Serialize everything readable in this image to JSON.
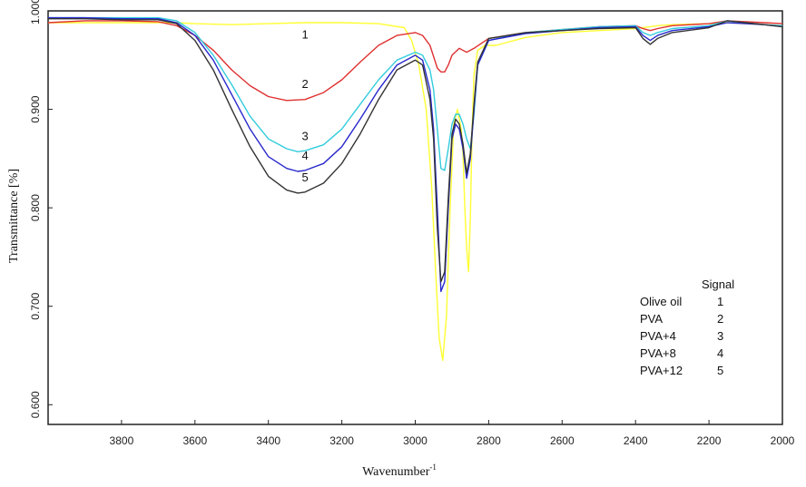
{
  "chart_data": {
    "type": "line",
    "title": "",
    "xlabel": "Wavenumber",
    "xlabel_sup": "-1",
    "ylabel": "Transmittance [%]",
    "xlim": [
      4000,
      2000
    ],
    "ylim": [
      0.58,
      1.0
    ],
    "x_ticks": [
      "3800",
      "3600",
      "3400",
      "3200",
      "3000",
      "2800",
      "2600",
      "2400",
      "2200",
      "2000"
    ],
    "y_ticks": [
      "1.000",
      "0.900",
      "0.800",
      "0.700",
      "0.600"
    ],
    "legend_header": "Signal",
    "legend_placement": "bottom-right",
    "grid": false,
    "series": [
      {
        "name": "Olive oil",
        "signal": "1",
        "color": "#ffff33",
        "x": [
          4000,
          3900,
          3800,
          3700,
          3650,
          3600,
          3500,
          3400,
          3300,
          3200,
          3100,
          3030,
          3010,
          2990,
          2970,
          2955,
          2945,
          2935,
          2925,
          2915,
          2905,
          2895,
          2885,
          2875,
          2870,
          2865,
          2860,
          2855,
          2850,
          2845,
          2840,
          2830,
          2810,
          2780,
          2700,
          2600,
          2500,
          2400,
          2380,
          2360,
          2340,
          2300,
          2200,
          2150,
          2100,
          2050,
          2000
        ],
        "y": [
          0.988,
          0.988,
          0.988,
          0.988,
          0.988,
          0.987,
          0.986,
          0.987,
          0.988,
          0.988,
          0.987,
          0.983,
          0.97,
          0.945,
          0.9,
          0.82,
          0.74,
          0.668,
          0.645,
          0.69,
          0.8,
          0.885,
          0.9,
          0.88,
          0.855,
          0.8,
          0.76,
          0.735,
          0.79,
          0.88,
          0.935,
          0.96,
          0.965,
          0.965,
          0.973,
          0.978,
          0.98,
          0.982,
          0.983,
          0.984,
          0.985,
          0.986,
          0.987,
          0.988,
          0.987,
          0.986,
          0.985
        ]
      },
      {
        "name": "PVA",
        "signal": "2",
        "color": "#e03030",
        "x": [
          4000,
          3900,
          3800,
          3700,
          3650,
          3600,
          3550,
          3500,
          3450,
          3400,
          3350,
          3300,
          3250,
          3200,
          3150,
          3100,
          3050,
          3000,
          2980,
          2960,
          2940,
          2930,
          2920,
          2910,
          2900,
          2880,
          2860,
          2840,
          2800,
          2700,
          2600,
          2500,
          2400,
          2380,
          2360,
          2340,
          2300,
          2200,
          2150,
          2100,
          2050,
          2000
        ],
        "y": [
          0.988,
          0.99,
          0.99,
          0.989,
          0.985,
          0.975,
          0.96,
          0.94,
          0.924,
          0.913,
          0.909,
          0.91,
          0.917,
          0.93,
          0.948,
          0.965,
          0.975,
          0.978,
          0.975,
          0.965,
          0.942,
          0.938,
          0.938,
          0.945,
          0.955,
          0.962,
          0.958,
          0.962,
          0.972,
          0.978,
          0.981,
          0.984,
          0.985,
          0.982,
          0.98,
          0.982,
          0.985,
          0.987,
          0.99,
          0.989,
          0.988,
          0.987
        ]
      },
      {
        "name": "PVA+4",
        "signal": "3",
        "color": "#33ccdd",
        "x": [
          4000,
          3900,
          3800,
          3700,
          3650,
          3600,
          3550,
          3500,
          3450,
          3400,
          3350,
          3320,
          3300,
          3250,
          3200,
          3150,
          3100,
          3050,
          3000,
          2980,
          2960,
          2950,
          2940,
          2930,
          2920,
          2910,
          2900,
          2890,
          2880,
          2870,
          2860,
          2850,
          2840,
          2830,
          2800,
          2700,
          2600,
          2500,
          2400,
          2380,
          2360,
          2340,
          2300,
          2200,
          2150,
          2100,
          2050,
          2000
        ],
        "y": [
          0.993,
          0.993,
          0.993,
          0.993,
          0.99,
          0.978,
          0.955,
          0.925,
          0.893,
          0.87,
          0.86,
          0.857,
          0.858,
          0.864,
          0.88,
          0.905,
          0.93,
          0.95,
          0.958,
          0.955,
          0.94,
          0.92,
          0.88,
          0.84,
          0.838,
          0.86,
          0.885,
          0.895,
          0.895,
          0.885,
          0.87,
          0.86,
          0.895,
          0.945,
          0.97,
          0.978,
          0.981,
          0.984,
          0.985,
          0.978,
          0.975,
          0.978,
          0.982,
          0.985,
          0.99,
          0.988,
          0.986,
          0.985
        ]
      },
      {
        "name": "PVA+8",
        "signal": "4",
        "color": "#2828cc",
        "x": [
          4000,
          3900,
          3800,
          3700,
          3650,
          3600,
          3550,
          3500,
          3450,
          3400,
          3350,
          3320,
          3300,
          3250,
          3200,
          3150,
          3100,
          3050,
          3000,
          2980,
          2960,
          2950,
          2940,
          2930,
          2920,
          2910,
          2900,
          2890,
          2880,
          2870,
          2860,
          2850,
          2840,
          2830,
          2800,
          2700,
          2600,
          2500,
          2400,
          2380,
          2360,
          2340,
          2300,
          2200,
          2150,
          2100,
          2050,
          2000
        ],
        "y": [
          0.993,
          0.993,
          0.992,
          0.992,
          0.988,
          0.975,
          0.95,
          0.915,
          0.88,
          0.852,
          0.84,
          0.837,
          0.838,
          0.845,
          0.862,
          0.89,
          0.92,
          0.945,
          0.955,
          0.95,
          0.92,
          0.88,
          0.8,
          0.715,
          0.725,
          0.8,
          0.87,
          0.885,
          0.88,
          0.86,
          0.83,
          0.85,
          0.9,
          0.945,
          0.97,
          0.977,
          0.98,
          0.983,
          0.984,
          0.975,
          0.97,
          0.975,
          0.98,
          0.984,
          0.988,
          0.987,
          0.986,
          0.984
        ]
      },
      {
        "name": "PVA+12",
        "signal": "5",
        "color": "#333333",
        "x": [
          4000,
          3900,
          3800,
          3700,
          3650,
          3600,
          3550,
          3500,
          3450,
          3400,
          3350,
          3320,
          3300,
          3250,
          3200,
          3150,
          3100,
          3050,
          3000,
          2980,
          2960,
          2950,
          2940,
          2930,
          2920,
          2910,
          2900,
          2890,
          2880,
          2870,
          2860,
          2850,
          2840,
          2830,
          2800,
          2700,
          2600,
          2500,
          2400,
          2380,
          2360,
          2340,
          2300,
          2200,
          2150,
          2100,
          2050,
          2000
        ],
        "y": [
          0.992,
          0.992,
          0.991,
          0.991,
          0.987,
          0.97,
          0.94,
          0.9,
          0.862,
          0.832,
          0.818,
          0.815,
          0.816,
          0.825,
          0.845,
          0.875,
          0.91,
          0.94,
          0.95,
          0.945,
          0.91,
          0.87,
          0.78,
          0.725,
          0.735,
          0.81,
          0.875,
          0.89,
          0.885,
          0.865,
          0.835,
          0.855,
          0.905,
          0.948,
          0.972,
          0.978,
          0.98,
          0.982,
          0.983,
          0.972,
          0.966,
          0.972,
          0.978,
          0.983,
          0.99,
          0.988,
          0.986,
          0.984
        ]
      }
    ]
  },
  "legend_labels": {
    "header": "Signal",
    "rows": [
      {
        "name": "Olive oil",
        "signal": "1"
      },
      {
        "name": "PVA",
        "signal": "2"
      },
      {
        "name": "PVA+4",
        "signal": "3"
      },
      {
        "name": "PVA+8",
        "signal": "4"
      },
      {
        "name": "PVA+12",
        "signal": "5"
      }
    ]
  }
}
